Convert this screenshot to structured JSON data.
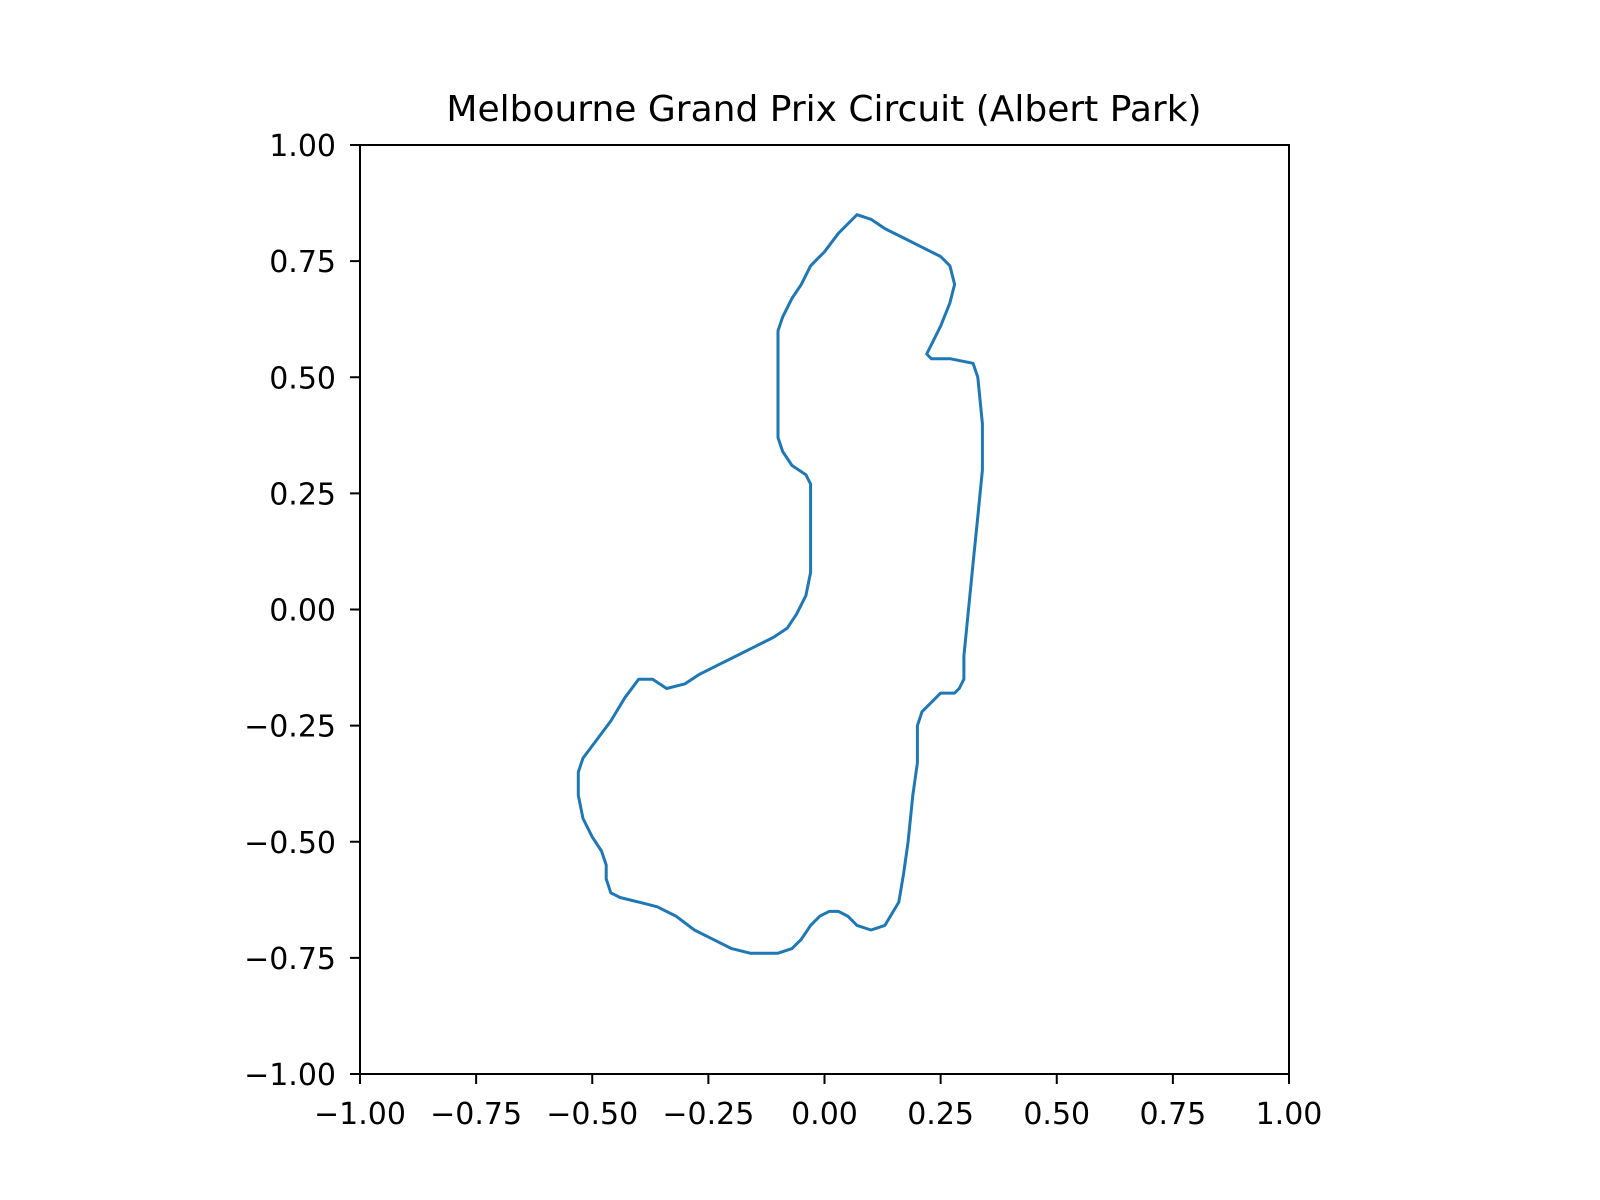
{
  "chart_data": {
    "type": "line",
    "title": "Melbourne Grand Prix Circuit (Albert Park)",
    "xlabel": "",
    "ylabel": "",
    "xlim": [
      -1.0,
      1.0
    ],
    "ylim": [
      -1.0,
      1.0
    ],
    "xticks": [
      "−1.00",
      "−0.75",
      "−0.50",
      "−0.25",
      "0.00",
      "0.25",
      "0.50",
      "0.75",
      "1.00"
    ],
    "yticks": [
      "1.00",
      "0.75",
      "0.50",
      "0.25",
      "0.00",
      "−0.25",
      "−0.50",
      "−0.75",
      "−1.00"
    ],
    "grid": false,
    "legend": "none",
    "series": [
      {
        "color": "#1f77b4",
        "x": [
          0.07,
          0.1,
          0.13,
          0.17,
          0.21,
          0.25,
          0.27,
          0.28,
          0.27,
          0.25,
          0.22,
          0.23,
          0.27,
          0.32,
          0.33,
          0.34,
          0.34,
          0.33,
          0.32,
          0.31,
          0.3,
          0.3,
          0.29,
          0.28,
          0.25,
          0.23,
          0.21,
          0.2,
          0.2,
          0.19,
          0.18,
          0.17,
          0.16,
          0.13,
          0.1,
          0.07,
          0.05,
          0.03,
          0.01,
          -0.01,
          -0.03,
          -0.05,
          -0.07,
          -0.1,
          -0.13,
          -0.16,
          -0.2,
          -0.24,
          -0.28,
          -0.32,
          -0.36,
          -0.4,
          -0.44,
          -0.46,
          -0.47,
          -0.47,
          -0.48,
          -0.5,
          -0.52,
          -0.53,
          -0.53,
          -0.52,
          -0.49,
          -0.46,
          -0.43,
          -0.4,
          -0.37,
          -0.34,
          -0.3,
          -0.27,
          -0.23,
          -0.19,
          -0.15,
          -0.11,
          -0.08,
          -0.06,
          -0.04,
          -0.03,
          -0.03,
          -0.03,
          -0.04,
          -0.07,
          -0.09,
          -0.1,
          -0.1,
          -0.1,
          -0.1,
          -0.09,
          -0.07,
          -0.05,
          -0.03,
          0.0,
          0.03,
          0.07
        ],
        "y": [
          0.85,
          0.84,
          0.82,
          0.8,
          0.78,
          0.76,
          0.74,
          0.7,
          0.66,
          0.61,
          0.55,
          0.54,
          0.54,
          0.53,
          0.5,
          0.4,
          0.3,
          0.2,
          0.1,
          0.0,
          -0.1,
          -0.15,
          -0.17,
          -0.18,
          -0.18,
          -0.2,
          -0.22,
          -0.25,
          -0.33,
          -0.4,
          -0.5,
          -0.57,
          -0.63,
          -0.68,
          -0.69,
          -0.68,
          -0.66,
          -0.65,
          -0.65,
          -0.66,
          -0.68,
          -0.71,
          -0.73,
          -0.74,
          -0.74,
          -0.74,
          -0.73,
          -0.71,
          -0.69,
          -0.66,
          -0.64,
          -0.63,
          -0.62,
          -0.61,
          -0.58,
          -0.55,
          -0.52,
          -0.49,
          -0.45,
          -0.4,
          -0.35,
          -0.32,
          -0.28,
          -0.24,
          -0.19,
          -0.15,
          -0.15,
          -0.17,
          -0.16,
          -0.14,
          -0.12,
          -0.1,
          -0.08,
          -0.06,
          -0.04,
          -0.01,
          0.03,
          0.08,
          0.15,
          0.27,
          0.29,
          0.31,
          0.34,
          0.37,
          0.45,
          0.52,
          0.6,
          0.63,
          0.67,
          0.7,
          0.74,
          0.77,
          0.81,
          0.85
        ]
      }
    ]
  }
}
